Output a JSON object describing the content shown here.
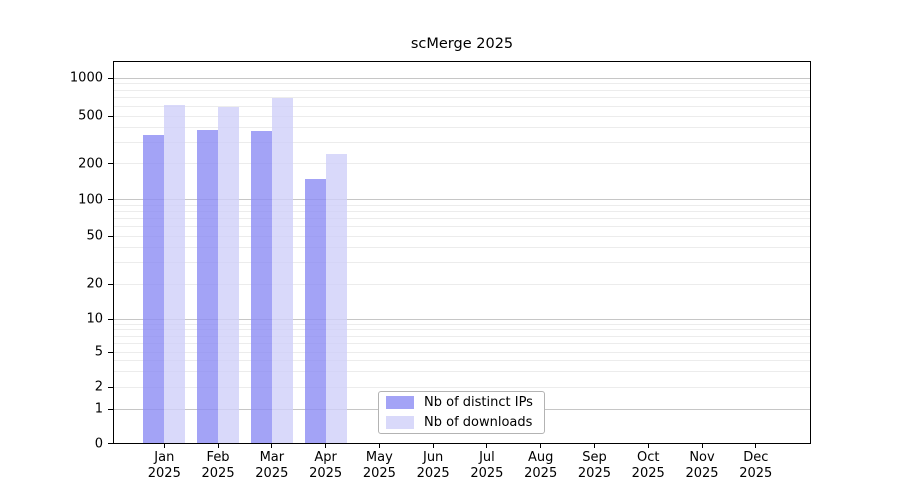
{
  "chart_data": {
    "type": "bar",
    "title": "scMerge 2025",
    "categories": [
      "Jan 2025",
      "Feb 2025",
      "Mar 2025",
      "Apr 2025",
      "May 2025",
      "Jun 2025",
      "Jul 2025",
      "Aug 2025",
      "Sep 2025",
      "Oct 2025",
      "Nov 2025",
      "Dec 2025"
    ],
    "series": [
      {
        "name": "Nb of distinct IPs",
        "color": "#a4a4f5",
        "fill_rgba": "rgba(140,140,244,0.8)",
        "values": [
          345,
          380,
          375,
          148,
          null,
          null,
          null,
          null,
          null,
          null,
          null,
          null
        ]
      },
      {
        "name": "Nb of downloads",
        "color": "#d7d7fa",
        "fill_rgba": "rgba(207,207,249,0.8)",
        "values": [
          615,
          590,
          690,
          238,
          null,
          null,
          null,
          null,
          null,
          null,
          null,
          null
        ]
      }
    ],
    "y_ticks": [
      0,
      1,
      2,
      5,
      10,
      20,
      50,
      100,
      200,
      500,
      1000
    ],
    "y_scale": "log-like (0 shown at baseline)",
    "ylim": [
      0,
      1400
    ],
    "xlabel": "",
    "ylabel": "",
    "grid": "horizontal major and log-minor gridlines",
    "legend_position": "lower center"
  },
  "colors": {
    "major_grid": "#c6c6c6",
    "minor_grid": "#ececec",
    "axis": "#000000",
    "background": "#ffffff",
    "legend_border": "#b3b3b3"
  }
}
